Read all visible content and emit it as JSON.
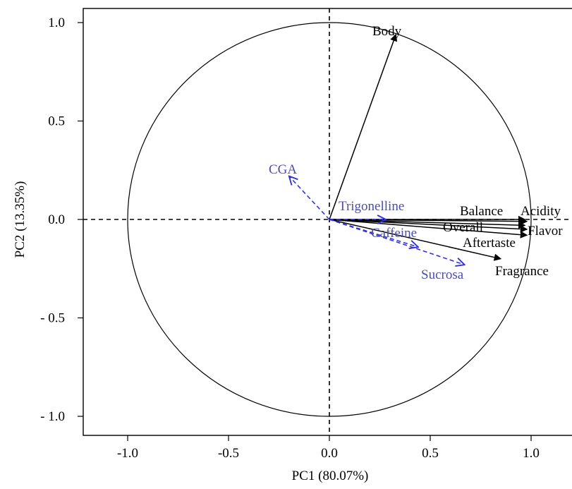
{
  "chart_data": {
    "type": "scatter",
    "subtype": "pca-correlation-circle",
    "xlabel": "PC1 (80.07%)",
    "ylabel": "PC2 (13.35%)",
    "xlim": [
      -1.23,
      1.2
    ],
    "ylim": [
      -1.1,
      1.1
    ],
    "xticks": [
      -1.0,
      -0.5,
      0.0,
      0.5,
      1.0
    ],
    "xtick_labels": [
      "-1.0",
      "-0.5",
      "0.0",
      "0.5",
      "1.0"
    ],
    "yticks": [
      1.0,
      0.5,
      0.0,
      -0.5,
      -1.0
    ],
    "ytick_labels": [
      "1.0",
      "0.5",
      "0.0",
      "- 0.5",
      "- 1.0"
    ],
    "unit_circle": true,
    "reference_lines": {
      "x": 0,
      "y": 0,
      "style": "dashed"
    },
    "grid": false,
    "series": [
      {
        "style": "solid",
        "color": "#000000",
        "vectors": [
          {
            "label": "Body",
            "x": 0.33,
            "y": 0.94
          },
          {
            "label": "Balance",
            "x": 0.97,
            "y": 0.0
          },
          {
            "label": "Acidity",
            "x": 0.98,
            "y": -0.01
          },
          {
            "label": "Overall",
            "x": 0.97,
            "y": -0.03
          },
          {
            "label": "Flavor",
            "x": 0.98,
            "y": -0.05
          },
          {
            "label": "Aftertaste",
            "x": 0.98,
            "y": -0.08
          },
          {
            "label": "Fragrance",
            "x": 0.85,
            "y": -0.2
          }
        ]
      },
      {
        "style": "dashed",
        "color": "#3333dd",
        "label_color": "#4d4daa",
        "vectors": [
          {
            "label": "CGA",
            "x": -0.2,
            "y": 0.22
          },
          {
            "label": "Trigonelline",
            "x": 0.28,
            "y": 0.0
          },
          {
            "label": "Caffeine",
            "x": 0.44,
            "y": -0.14
          },
          {
            "label": "Sucrosa",
            "x": 0.67,
            "y": -0.23
          }
        ]
      }
    ]
  }
}
